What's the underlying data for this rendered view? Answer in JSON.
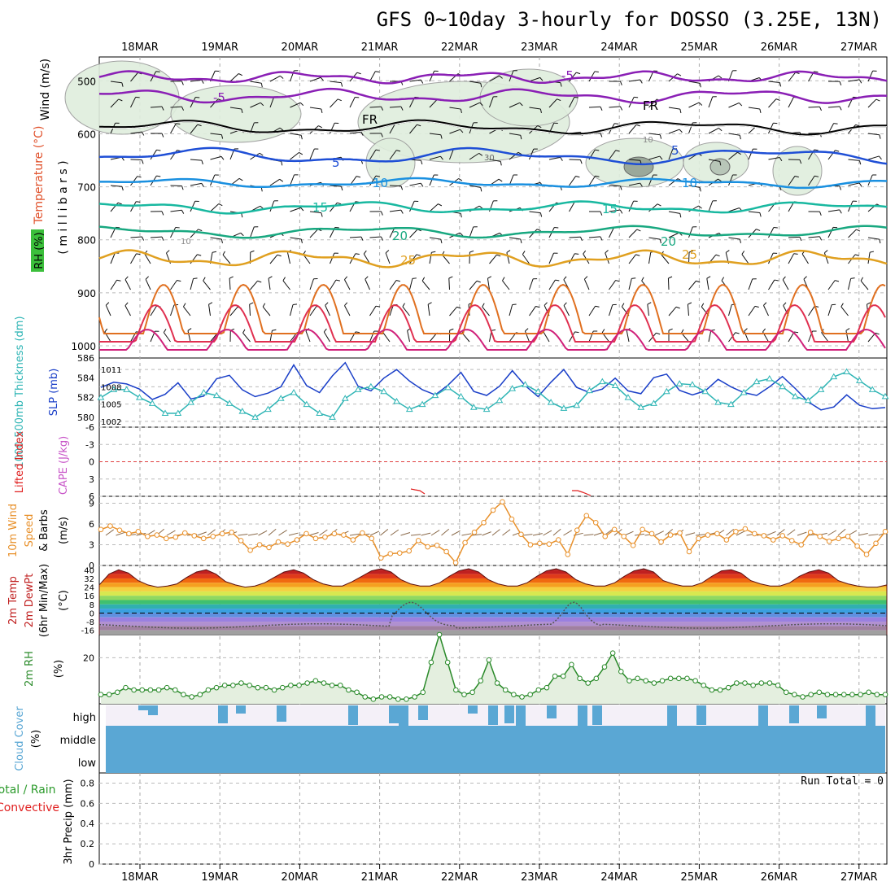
{
  "title": "GFS 0~10day 3-hourly for DOSSO (3.25E, 13N)",
  "colors": {
    "wind": "#000000",
    "temperature": "#e0502a",
    "rh": "#3bbf3b",
    "thickness": "#2fb5b5",
    "slp": "#1a3fc8",
    "lifted_index": "#e02020",
    "cape": "#c855c8",
    "wind10m": "#e8902a",
    "temp2m": "#c02020",
    "dewpt2m": "#555555",
    "rh2m": "#2a8a2a",
    "cloud": "#5aa7d4",
    "precip_total": "#2a9a2a",
    "precip_convective": "#e02020"
  },
  "dates": [
    "18MAR",
    "19MAR",
    "20MAR",
    "21MAR",
    "22MAR",
    "23MAR",
    "24MAR",
    "25MAR",
    "26MAR",
    "27MAR"
  ],
  "panels": {
    "upper_air": {
      "ylabel_wind": "Wind (m/s)",
      "ylabel_temp": "Temperature (°C)",
      "ylabel_rh": "RH (%)",
      "ylabel_mb": "( m i l l i b a r s )",
      "yticks": [
        "500",
        "600",
        "700",
        "800",
        "900",
        "1000"
      ],
      "contour_labels": [
        {
          "text": "-5",
          "level": "m5"
        },
        {
          "text": "-5",
          "level": "m5b"
        },
        {
          "text": "FR",
          "level": "fr"
        },
        {
          "text": "FR",
          "level": "frb"
        },
        {
          "text": "5",
          "level": "p5"
        },
        {
          "text": "5",
          "level": "p5b"
        },
        {
          "text": "10",
          "level": "p10"
        },
        {
          "text": "10",
          "level": "p10b"
        },
        {
          "text": "15",
          "level": "p15"
        },
        {
          "text": "15",
          "level": "p15b"
        },
        {
          "text": "20",
          "level": "p20"
        },
        {
          "text": "20",
          "level": "p20b"
        },
        {
          "text": "25",
          "level": "p25"
        },
        {
          "text": "25",
          "level": "p25b"
        },
        {
          "text": "30",
          "level": "rh30"
        },
        {
          "text": "10",
          "level": "rh10"
        },
        {
          "text": "10",
          "level": "rh10b"
        }
      ]
    },
    "thickness": {
      "ylabel_left": "1000-500mb Thickness (dm)",
      "ylabel_right": "SLP (mb)",
      "yticks_left": [
        "586",
        "584",
        "582",
        "580"
      ],
      "yticks_right": [
        "1011",
        "1008",
        "1005",
        "1002"
      ]
    },
    "stability": {
      "ylabel_left": "Lifted Index",
      "ylabel_right": "CAPE (J/kg)",
      "yticks": [
        "-6",
        "-3",
        "0",
        "3",
        "6"
      ]
    },
    "wind10m": {
      "ylabel_1": "10m Wind",
      "ylabel_2": "Speed",
      "ylabel_3": "& Barbs",
      "unit": "(m/s)",
      "yticks": [
        "9",
        "6",
        "3",
        "0"
      ]
    },
    "temp2m": {
      "ylabel_1": "2m Temp",
      "ylabel_2": "2m DewPt",
      "ylabel_3": "(6hr Min/Max)",
      "unit": "(°C)",
      "yticks": [
        "40",
        "32",
        "24",
        "16",
        "8",
        "0",
        "-8",
        "-16"
      ]
    },
    "rh2m": {
      "ylabel": "2m RH",
      "unit": "(%)",
      "yticks": [
        "20"
      ]
    },
    "cloud": {
      "ylabel": "Cloud Cover",
      "unit": "(%)",
      "levels": [
        "high",
        "middle",
        "low"
      ]
    },
    "precip": {
      "ylabel_1": "Total / Rain",
      "ylabel_2": "Convective",
      "ylabel_3": "3hr Precip (mm)",
      "yticks": [
        "0.8",
        "0.6",
        "0.4",
        "0.2",
        "0"
      ],
      "run_total": "Run Total = 0"
    }
  },
  "chart_data": [
    {
      "type": "line",
      "title": "1000-500mb Thickness / SLP",
      "series": [
        {
          "name": "SLP (mb)",
          "values": [
            1007.9,
            1008.8,
            1008.5,
            1007.6,
            1005.8,
            1006.7,
            1008.7,
            1005.9,
            1006.4,
            1009.4,
            1010.0,
            1007.5,
            1006.3,
            1006.9,
            1008.0,
            1011.8,
            1008.2,
            1007.0,
            1009.9,
            1012.2,
            1008.1,
            1007.3,
            1009.5,
            1011.0,
            1009.0,
            1007.5,
            1006.6,
            1008.3,
            1010.5,
            1007.2,
            1006.5,
            1008.1,
            1010.8,
            1008.2,
            1006.3,
            1008.8,
            1011.0,
            1007.9,
            1007.0,
            1007.6,
            1009.5,
            1007.3,
            1006.8,
            1009.6,
            1010.2,
            1007.4,
            1006.6,
            1007.3,
            1009.3,
            1008.0,
            1007.0,
            1006.5,
            1008.0,
            1009.8,
            1007.7,
            1005.4,
            1004.0,
            1004.5,
            1006.6,
            1004.8,
            1004.2,
            1004.4
          ]
        },
        {
          "name": "Thickness (dm)",
          "values": [
            582.0,
            582.8,
            582.8,
            582.0,
            581.4,
            580.4,
            580.4,
            581.5,
            582.5,
            582.2,
            581.4,
            580.6,
            580.0,
            580.8,
            581.9,
            582.5,
            581.3,
            580.4,
            580.0,
            581.9,
            582.8,
            583.1,
            582.6,
            581.6,
            580.8,
            581.3,
            582.2,
            583.0,
            582.1,
            581.0,
            580.8,
            581.7,
            582.9,
            583.3,
            582.6,
            581.5,
            580.9,
            581.2,
            582.7,
            583.6,
            583.2,
            582.0,
            581.0,
            581.4,
            582.6,
            583.4,
            583.3,
            582.6,
            581.5,
            581.3,
            582.5,
            583.6,
            583.9,
            583.1,
            582.1,
            581.7,
            582.8,
            584.1,
            584.6,
            583.7,
            582.8,
            582.1
          ]
        }
      ],
      "ylim_left": [
        579,
        586
      ],
      "ylim_right": [
        1001,
        1013
      ]
    },
    {
      "type": "line",
      "title": "10m Wind Speed",
      "series": [
        {
          "name": "10m Wind Speed (m/s)",
          "values": [
            5.2,
            5.7,
            5.1,
            4.6,
            4.9,
            4.2,
            4.4,
            3.9,
            4.1,
            4.7,
            4.3,
            3.9,
            4.2,
            4.6,
            4.8,
            3.6,
            2.2,
            3.0,
            2.6,
            3.4,
            3.1,
            3.7,
            4.6,
            3.9,
            4.1,
            4.6,
            4.4,
            3.7,
            4.7,
            3.9,
            1.1,
            1.7,
            1.8,
            2.1,
            3.6,
            2.7,
            2.9,
            2.0,
            0.4,
            3.3,
            4.8,
            6.2,
            8.0,
            9.2,
            6.7,
            4.5,
            3.0,
            3.2,
            3.1,
            3.7,
            1.6,
            5.1,
            7.2,
            6.2,
            4.2,
            5.2,
            4.2,
            2.9,
            5.2,
            4.6,
            3.4,
            4.4,
            4.7,
            2.0,
            3.9,
            4.4,
            4.6,
            3.7,
            4.9,
            5.3,
            4.6,
            4.3,
            3.7,
            4.3,
            3.6,
            3.0,
            4.8,
            4.2,
            3.5,
            3.9,
            4.2,
            2.8,
            1.6,
            3.2,
            4.9
          ]
        }
      ],
      "ylim": [
        0,
        10
      ]
    },
    {
      "type": "area",
      "title": "2m Temp",
      "series": [
        {
          "name": "2m Temp (°C)",
          "values": [
            26,
            36,
            40,
            37,
            30,
            26,
            24,
            25,
            27,
            33,
            38,
            40,
            36,
            29,
            26,
            24,
            25,
            28,
            33,
            38,
            40,
            37,
            31,
            27,
            25,
            25,
            29,
            34,
            39,
            41,
            38,
            31,
            27,
            25,
            25,
            28,
            34,
            39,
            41,
            38,
            31,
            27,
            25,
            25,
            28,
            34,
            39,
            41,
            38,
            31,
            27,
            25,
            25,
            28,
            34,
            39,
            41,
            38,
            30,
            27,
            25,
            25,
            28,
            34,
            39,
            40,
            37,
            30,
            27,
            25,
            25,
            28,
            34,
            38,
            40,
            37,
            30,
            27,
            25,
            24,
            24,
            26
          ]
        }
      ],
      "ylim": [
        -20,
        44
      ]
    },
    {
      "type": "line",
      "title": "2m RH",
      "series": [
        {
          "name": "2m RH (%)",
          "values": [
            4,
            4,
            5,
            7,
            6,
            6,
            6,
            6,
            7,
            6,
            4,
            3,
            4,
            6,
            7,
            8,
            8,
            9,
            8,
            7,
            7,
            6,
            7,
            8,
            8,
            9,
            10,
            9,
            8,
            8,
            6,
            5,
            3,
            2,
            3,
            3,
            2,
            2,
            3,
            5,
            18,
            30,
            18,
            6,
            4,
            5,
            10,
            19,
            9,
            6,
            4,
            3,
            4,
            6,
            7,
            12,
            12,
            17,
            11,
            9,
            11,
            16,
            22,
            14,
            10,
            11,
            10,
            9,
            10,
            11,
            11,
            11,
            10,
            8,
            6,
            6,
            7,
            9,
            9,
            8,
            9,
            9,
            8,
            5,
            4,
            3,
            4,
            5,
            4,
            4,
            4,
            4,
            4,
            5,
            4,
            4
          ]
        }
      ],
      "ylim": [
        0,
        30
      ]
    },
    {
      "type": "bar",
      "title": "3hr Precip",
      "series": [
        {
          "name": "Total / Rain (mm)",
          "values": [
            0
          ]
        },
        {
          "name": "Convective (mm)",
          "values": [
            0
          ]
        }
      ],
      "ylim": [
        0,
        0.9
      ]
    }
  ]
}
